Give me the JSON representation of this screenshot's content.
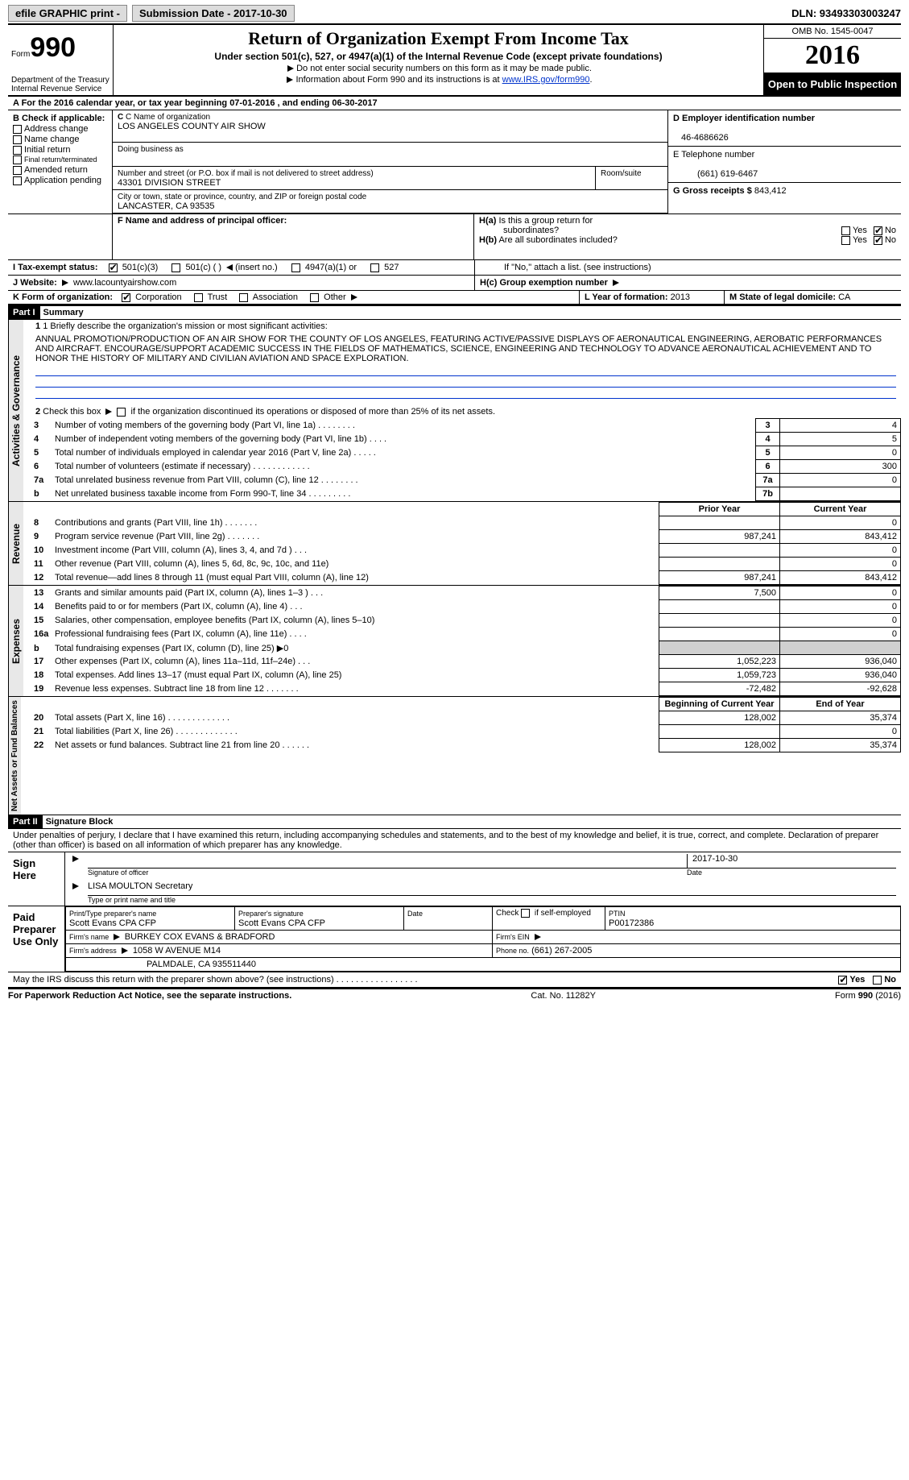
{
  "topbar": {
    "efile": "efile GRAPHIC print -",
    "submission_label": "Submission Date - 2017-10-30",
    "dln_label": "DLN: 93493303003247"
  },
  "header": {
    "form_label": "Form",
    "form_number": "990",
    "dept": "Department of the Treasury\nInternal Revenue Service",
    "title": "Return of Organization Exempt From Income Tax",
    "subtitle": "Under section 501(c), 527, or 4947(a)(1) of the Internal Revenue Code (except private foundations)",
    "note1": "Do not enter social security numbers on this form as it may be made public.",
    "note2_pre": "Information about Form 990 and its instructions is at ",
    "note2_link": "www.IRS.gov/form990",
    "omb": "OMB No. 1545-0047",
    "year": "2016",
    "open": "Open to Public Inspection"
  },
  "sectionA": {
    "text": "A   For the 2016 calendar year, or tax year beginning 07-01-2016    , and ending 06-30-2017"
  },
  "sectionB": {
    "title": "B Check if applicable:",
    "items": [
      "Address change",
      "Name change",
      "Initial return",
      "Final return/terminated",
      "Amended return",
      "Application pending"
    ]
  },
  "sectionC": {
    "name_label": "C Name of organization",
    "name": "LOS ANGELES COUNTY AIR SHOW",
    "dba_label": "Doing business as",
    "dba": "",
    "street_label": "Number and street (or P.O. box if mail is not delivered to street address)",
    "room_label": "Room/suite",
    "street": "43301 DIVISION STREET",
    "city_label": "City or town, state or province, country, and ZIP or foreign postal code",
    "city": "LANCASTER, CA   93535"
  },
  "sectionD": {
    "label": "D Employer identification number",
    "value": "46-4686626"
  },
  "sectionE": {
    "label": "E Telephone number",
    "value": "(661) 619-6467"
  },
  "sectionG": {
    "label": "G Gross receipts $",
    "value": "843,412"
  },
  "sectionF": {
    "label": "F Name and address of principal officer:"
  },
  "sectionH": {
    "a_label": "H(a)  Is this a group return for subordinates?",
    "b_label": "H(b)  Are all subordinates included?",
    "b_note": "If \"No,\" attach a list. (see instructions)",
    "c_label": "H(c)  Group exemption number",
    "yes": "Yes",
    "no": "No"
  },
  "sectionI": {
    "label": "I   Tax-exempt status:",
    "opts": [
      "501(c)(3)",
      "501(c) (   )",
      "(insert no.)",
      "4947(a)(1) or",
      "527"
    ]
  },
  "sectionJ": {
    "label": "J   Website:",
    "value": "www.lacountyairshow.com"
  },
  "sectionK": {
    "label": "K Form of organization:",
    "opts": [
      "Corporation",
      "Trust",
      "Association",
      "Other"
    ]
  },
  "sectionL": {
    "label": "L Year of formation:",
    "value": "2013"
  },
  "sectionM": {
    "label": "M State of legal domicile:",
    "value": "CA"
  },
  "partI": {
    "tag": "Part I",
    "title": "Summary",
    "mission_label": "1 Briefly describe the organization's mission or most significant activities:",
    "mission": "ANNUAL PROMOTION/PRODUCTION OF AN AIR SHOW FOR THE COUNTY OF LOS ANGELES, FEATURING ACTIVE/PASSIVE DISPLAYS OF AERONAUTICAL ENGINEERING, AEROBATIC PERFORMANCES AND AIRCRAFT. ENCOURAGE/SUPPORT ACADEMIC SUCCESS IN THE FIELDS OF MATHEMATICS, SCIENCE, ENGINEERING AND TECHNOLOGY TO ADVANCE AERONAUTICAL ACHIEVEMENT AND TO HONOR THE HISTORY OF MILITARY AND CIVILIAN AVIATION AND SPACE EXPLORATION.",
    "line2": "2   Check this box            if the organization discontinued its operations or disposed of more than 25% of its net assets.",
    "sides": {
      "ag": "Activities & Governance",
      "rev": "Revenue",
      "exp": "Expenses",
      "na": "Net Assets or Fund Balances"
    },
    "govrows": [
      {
        "n": "3",
        "d": "Number of voting members of the governing body (Part VI, line 1a)   .    .    .    .    .    .    .    .",
        "nn": "3",
        "v": "4"
      },
      {
        "n": "4",
        "d": "Number of independent voting members of the governing body (Part VI, line 1b)    .    .    .    .",
        "nn": "4",
        "v": "5"
      },
      {
        "n": "5",
        "d": "Total number of individuals employed in calendar year 2016 (Part V, line 2a)    .    .    .    .    .",
        "nn": "5",
        "v": "0"
      },
      {
        "n": "6",
        "d": "Total number of volunteers (estimate if necessary)   .    .    .    .    .    .    .    .    .    .    .    .",
        "nn": "6",
        "v": "300"
      },
      {
        "n": "7a",
        "d": "Total unrelated business revenue from Part VIII, column (C), line 12   .    .    .    .    .    .    .    .",
        "nn": "7a",
        "v": "0"
      },
      {
        "n": "b",
        "d": "Net unrelated business taxable income from Form 990-T, line 34   .    .    .    .    .    .    .    .    .",
        "nn": "7b",
        "v": ""
      }
    ],
    "prior": "Prior Year",
    "current": "Current Year",
    "revrows": [
      {
        "n": "8",
        "d": "Contributions and grants (Part VIII, line 1h)    .    .    .    .    .    .    .",
        "p": "",
        "c": "0"
      },
      {
        "n": "9",
        "d": "Program service revenue (Part VIII, line 2g)    .    .    .    .    .    .    .",
        "p": "987,241",
        "c": "843,412"
      },
      {
        "n": "10",
        "d": "Investment income (Part VIII, column (A), lines 3, 4, and 7d )   .    .    .",
        "p": "",
        "c": "0"
      },
      {
        "n": "11",
        "d": "Other revenue (Part VIII, column (A), lines 5, 6d, 8c, 9c, 10c, and 11e)",
        "p": "",
        "c": "0"
      },
      {
        "n": "12",
        "d": "Total revenue—add lines 8 through 11 (must equal Part VIII, column (A), line 12)",
        "p": "987,241",
        "c": "843,412"
      }
    ],
    "exprows": [
      {
        "n": "13",
        "d": "Grants and similar amounts paid (Part IX, column (A), lines 1–3 )   .    .    .",
        "p": "7,500",
        "c": "0"
      },
      {
        "n": "14",
        "d": "Benefits paid to or for members (Part IX, column (A), line 4)   .    .    .",
        "p": "",
        "c": "0"
      },
      {
        "n": "15",
        "d": "Salaries, other compensation, employee benefits (Part IX, column (A), lines 5–10)",
        "p": "",
        "c": "0"
      },
      {
        "n": "16a",
        "d": "Professional fundraising fees (Part IX, column (A), line 11e)   .    .    .    .",
        "p": "",
        "c": "0"
      },
      {
        "n": "b",
        "d": "Total fundraising expenses (Part IX, column (D), line 25) ▶0",
        "p": "GRAY",
        "c": "GRAY"
      },
      {
        "n": "17",
        "d": "Other expenses (Part IX, column (A), lines 11a–11d, 11f–24e)    .    .    .",
        "p": "1,052,223",
        "c": "936,040"
      },
      {
        "n": "18",
        "d": "Total expenses. Add lines 13–17 (must equal Part IX, column (A), line 25)",
        "p": "1,059,723",
        "c": "936,040"
      },
      {
        "n": "19",
        "d": "Revenue less expenses. Subtract line 18 from line 12 .    .    .    .    .    .    .",
        "p": "-72,482",
        "c": "-92,628"
      }
    ],
    "begin": "Beginning of Current Year",
    "end": "End of Year",
    "narows": [
      {
        "n": "20",
        "d": "Total assets (Part X, line 16)   .    .    .    .    .    .    .    .    .    .    .    .    .",
        "p": "128,002",
        "c": "35,374"
      },
      {
        "n": "21",
        "d": "Total liabilities (Part X, line 26)   .    .    .    .    .    .    .    .    .    .    .    .    .",
        "p": "",
        "c": "0"
      },
      {
        "n": "22",
        "d": "Net assets or fund balances. Subtract line 21 from line 20 .    .    .    .    .    .",
        "p": "128,002",
        "c": "35,374"
      }
    ]
  },
  "partII": {
    "tag": "Part II",
    "title": "Signature Block",
    "decl": "Under penalties of perjury, I declare that I have examined this return, including accompanying schedules and statements, and to the best of my knowledge and belief, it is true, correct, and complete. Declaration of preparer (other than officer) is based on all information of which preparer has any knowledge.",
    "sign_here": "Sign Here",
    "sig_officer": "Signature of officer",
    "date_label": "Date",
    "date_value": "2017-10-30",
    "officer_name": "LISA MOULTON Secretary",
    "officer_type": "Type or print name and title",
    "paid": "Paid Preparer Use Only",
    "prep_name_label": "Print/Type preparer's name",
    "prep_name": "Scott Evans CPA CFP",
    "prep_sig_label": "Preparer's signature",
    "prep_sig": "Scott Evans CPA CFP",
    "prep_date_label": "Date",
    "check_self": "Check           if self-employed",
    "ptin_label": "PTIN",
    "ptin": "P00172386",
    "firm_name_label": "Firm's name     ",
    "firm_name": "BURKEY COX EVANS & BRADFORD",
    "firm_ein_label": "Firm's EIN",
    "firm_addr_label": "Firm's address",
    "firm_addr1": "1058 W AVENUE M14",
    "firm_addr2": "PALMDALE, CA   935511440",
    "phone_label": "Phone no.",
    "phone": "(661) 267-2005",
    "discuss": "May the IRS discuss this return with the preparer shown above? (see instructions)   .    .    .    .    .    .    .    .    .    .    .    .    .    .    .    .    ."
  },
  "footer": {
    "left": "For Paperwork Reduction Act Notice, see the separate instructions.",
    "mid": "Cat. No. 11282Y",
    "right_pre": "Form ",
    "right_bold": "990",
    "right_post": " (2016)"
  },
  "colors": {
    "black": "#000000",
    "gray": "#d0d0d0",
    "link": "#0033cc"
  }
}
